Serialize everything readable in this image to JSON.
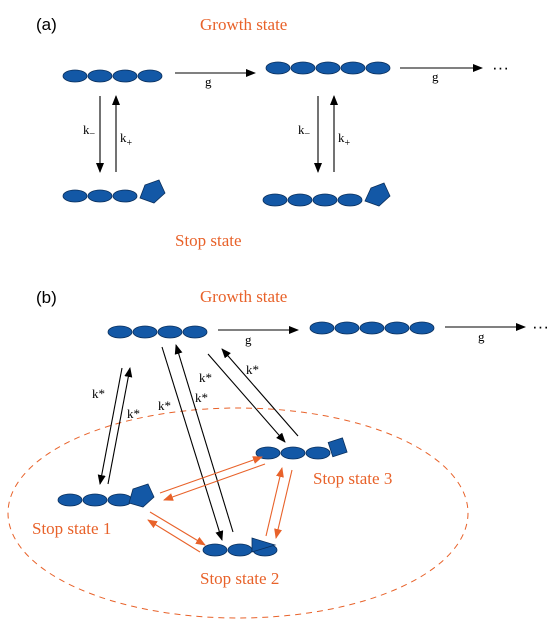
{
  "panel_a": {
    "label": "(a)",
    "growth_state": "Growth state",
    "stop_state": "Stop state",
    "rate_g1": "g",
    "rate_g2": "g",
    "ellipsis": "···",
    "k_minus_1": "k",
    "k_minus_1_sub": "−",
    "k_plus_1": "k",
    "k_plus_1_sub": "+",
    "k_minus_2": "k",
    "k_minus_2_sub": "−",
    "k_plus_2": "k",
    "k_plus_2_sub": "+"
  },
  "panel_b": {
    "label": "(b)",
    "growth_state": "Growth state",
    "rate_g1": "g",
    "rate_g2": "g",
    "ellipsis": "···",
    "k_star": "k*",
    "stop_state_1": "Stop state 1",
    "stop_state_2": "Stop state 2",
    "stop_state_3": "Stop state 3"
  },
  "colors": {
    "bead": "#1358a6",
    "accent": "#e8622a",
    "arrow": "#000000"
  }
}
